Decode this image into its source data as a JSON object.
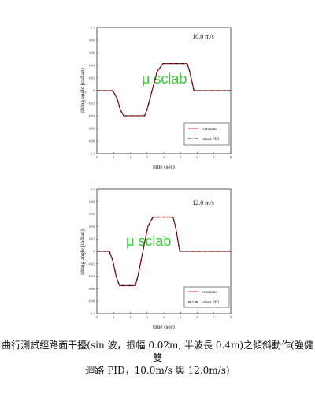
{
  "chart_data": [
    {
      "type": "line",
      "annotation": "10.0 m/s",
      "watermark": "μ sclab",
      "xlabel": "time (sec)",
      "ylabel": "tilting angle (radian)",
      "xlim": [
        0,
        8
      ],
      "ylim": [
        -0.1,
        0.1
      ],
      "x_ticks": [
        "0",
        "1",
        "2",
        "3",
        "4",
        "5",
        "6",
        "7",
        "8"
      ],
      "y_ticks": [
        "0.1",
        "0.08",
        "0.06",
        "0.04",
        "0.02",
        "0",
        "-0.02",
        "-0.04",
        "-0.06",
        "-0.08",
        "-0.1"
      ],
      "grid": false,
      "legend_position": "bottom-right",
      "series": [
        {
          "name": "command",
          "color": "#e02020",
          "style": "solid",
          "x": [
            0,
            0.95,
            1.2,
            1.4,
            1.6,
            2.85,
            3.0,
            3.3,
            3.6,
            3.95,
            5.4,
            5.55,
            5.8,
            8
          ],
          "y": [
            0,
            0,
            -0.012,
            -0.03,
            -0.04,
            -0.04,
            -0.03,
            0.0,
            0.03,
            0.043,
            0.043,
            0.03,
            0.0,
            0
          ]
        },
        {
          "name": "robust PID",
          "color": "#111111",
          "style": "dashdot",
          "x": [
            0,
            0.95,
            1.2,
            1.4,
            1.6,
            2.85,
            3.0,
            3.3,
            3.6,
            3.95,
            5.4,
            5.55,
            5.8,
            8
          ],
          "y": [
            0,
            0,
            -0.012,
            -0.03,
            -0.04,
            -0.04,
            -0.03,
            0.0,
            0.03,
            0.043,
            0.043,
            0.03,
            0.0,
            0
          ]
        }
      ]
    },
    {
      "type": "line",
      "annotation": "12.0 m/s",
      "watermark": "μ sclab",
      "xlabel": "time (sec)",
      "ylabel": "tilting angle (radian)",
      "xlim": [
        0,
        8
      ],
      "ylim": [
        -0.1,
        0.1
      ],
      "x_ticks": [
        "0",
        "1",
        "2",
        "3",
        "4",
        "5",
        "6",
        "7",
        "8"
      ],
      "y_ticks": [
        "0.1",
        "0.08",
        "0.06",
        "0.04",
        "0.02",
        "0",
        "-0.02",
        "-0.04",
        "-0.06",
        "-0.08",
        "-0.1"
      ],
      "grid": false,
      "legend_position": "bottom-right",
      "series": [
        {
          "name": "command",
          "color": "#e02020",
          "style": "solid",
          "x": [
            0,
            0.75,
            0.95,
            1.15,
            1.35,
            2.3,
            2.45,
            2.75,
            3.05,
            3.35,
            4.55,
            4.7,
            4.95,
            8
          ],
          "y": [
            0,
            0,
            -0.015,
            -0.04,
            -0.055,
            -0.055,
            -0.04,
            0.0,
            0.04,
            0.055,
            0.055,
            0.04,
            0.0,
            0
          ]
        },
        {
          "name": "robust PID",
          "color": "#111111",
          "style": "dashdot",
          "x": [
            0,
            0.75,
            0.95,
            1.15,
            1.35,
            2.3,
            2.45,
            2.75,
            3.05,
            3.35,
            4.55,
            4.7,
            4.95,
            8
          ],
          "y": [
            0,
            0,
            -0.015,
            -0.04,
            -0.055,
            -0.055,
            -0.04,
            0.0,
            0.04,
            0.055,
            0.055,
            0.04,
            0.0,
            0
          ]
        }
      ]
    }
  ],
  "caption": {
    "line1": "曲行測試經路面干擾(sin 波，振幅 0.02m, 半波長 0.4m)之傾斜動作(強健雙",
    "line2": "迴路 PID，10.0m/s 與 12.0m/s)"
  }
}
